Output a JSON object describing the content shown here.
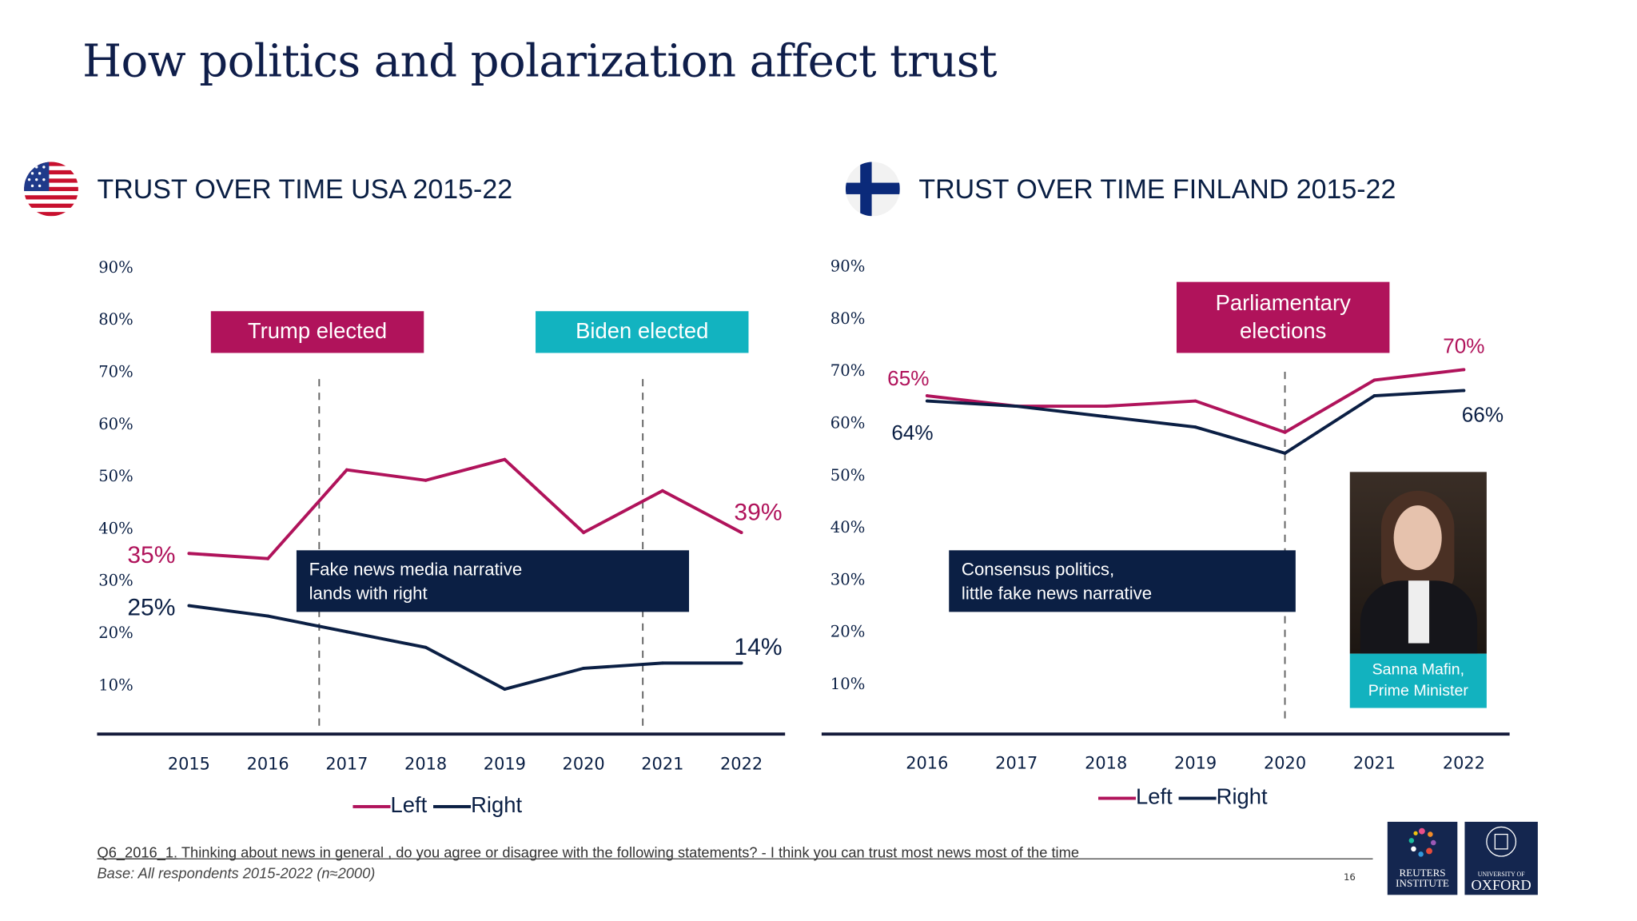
{
  "title": "How politics and polarization affect trust",
  "colors": {
    "left": "#b0135b",
    "right": "#0b1f44",
    "teal": "#12b3c0",
    "navy_box": "#0b1f44",
    "magenta_box": "#b0135b",
    "title": "#0f1e4a"
  },
  "usa": {
    "heading": "TRUST OVER TIME USA 2015-22",
    "flag_icon": "usa-flag-icon",
    "events": [
      {
        "label": "Trump elected",
        "year": 2016.65,
        "color": "#b0135b"
      },
      {
        "label": "Biden elected",
        "year": 2020.75,
        "color": "#12b3c0"
      }
    ],
    "annotation": [
      "Fake news media narrative",
      "lands with right"
    ]
  },
  "finland": {
    "heading": "TRUST OVER TIME FINLAND 2015-22",
    "flag_icon": "finland-flag-icon",
    "events": [
      {
        "label_lines": [
          "Parliamentary",
          "elections"
        ],
        "year": 2020,
        "color": "#b0135b"
      }
    ],
    "annotation": [
      "Consensus politics,",
      "little fake news narrative"
    ],
    "photo_caption": [
      "Sanna Mafin,",
      "Prime Minister"
    ]
  },
  "chart_data": [
    {
      "type": "line",
      "title": "TRUST OVER TIME USA 2015-22",
      "x": [
        2015,
        2016,
        2017,
        2018,
        2019,
        2020,
        2021,
        2022
      ],
      "x_tick_labels": [
        "2015",
        "2016",
        "2017",
        "2018",
        "2019",
        "2020",
        "2021",
        "2022"
      ],
      "y_tick_labels": [
        "90%",
        "80%",
        "70%",
        "60%",
        "50%",
        "40%",
        "30%",
        "20%",
        "10%"
      ],
      "ylim": [
        0,
        90
      ],
      "grid": false,
      "legend": "bottom",
      "series": [
        {
          "name": "Left",
          "values": [
            35,
            34,
            51,
            49,
            53,
            39,
            47,
            39
          ],
          "start_label": "35%",
          "end_label": "39%"
        },
        {
          "name": "Right",
          "values": [
            25,
            23,
            20,
            17,
            9,
            13,
            14,
            14
          ],
          "start_label": "25%",
          "end_label": "14%"
        }
      ]
    },
    {
      "type": "line",
      "title": "TRUST OVER TIME FINLAND 2015-22",
      "x": [
        2016,
        2017,
        2018,
        2019,
        2020,
        2021,
        2022
      ],
      "x_tick_labels": [
        "2016",
        "2017",
        "2018",
        "2019",
        "2020",
        "2021",
        "2022"
      ],
      "y_tick_labels": [
        "90%",
        "80%",
        "70%",
        "60%",
        "50%",
        "40%",
        "30%",
        "20%",
        "10%"
      ],
      "ylim": [
        0,
        90
      ],
      "grid": false,
      "legend": "bottom",
      "series": [
        {
          "name": "Left",
          "values": [
            65,
            63,
            63,
            64,
            58,
            68,
            70
          ],
          "start_label": "65%",
          "end_label": "70%"
        },
        {
          "name": "Right",
          "values": [
            64,
            63,
            61,
            59,
            54,
            65,
            66
          ],
          "start_label": "64%",
          "end_label": "66%"
        }
      ]
    }
  ],
  "footer": {
    "question_code": "Q6_2016_1.",
    "question": " Thinking about news in general , do you agree or disagree with the following statements? - I think you can trust most news most of the time",
    "base": "Base: All respondents 2015-2022 (n≈2000)",
    "page": "16",
    "logo_reuters": [
      "REUTERS",
      "INSTITUTE"
    ],
    "logo_oxford": [
      "UNIVERSITY OF",
      "OXFORD"
    ]
  }
}
